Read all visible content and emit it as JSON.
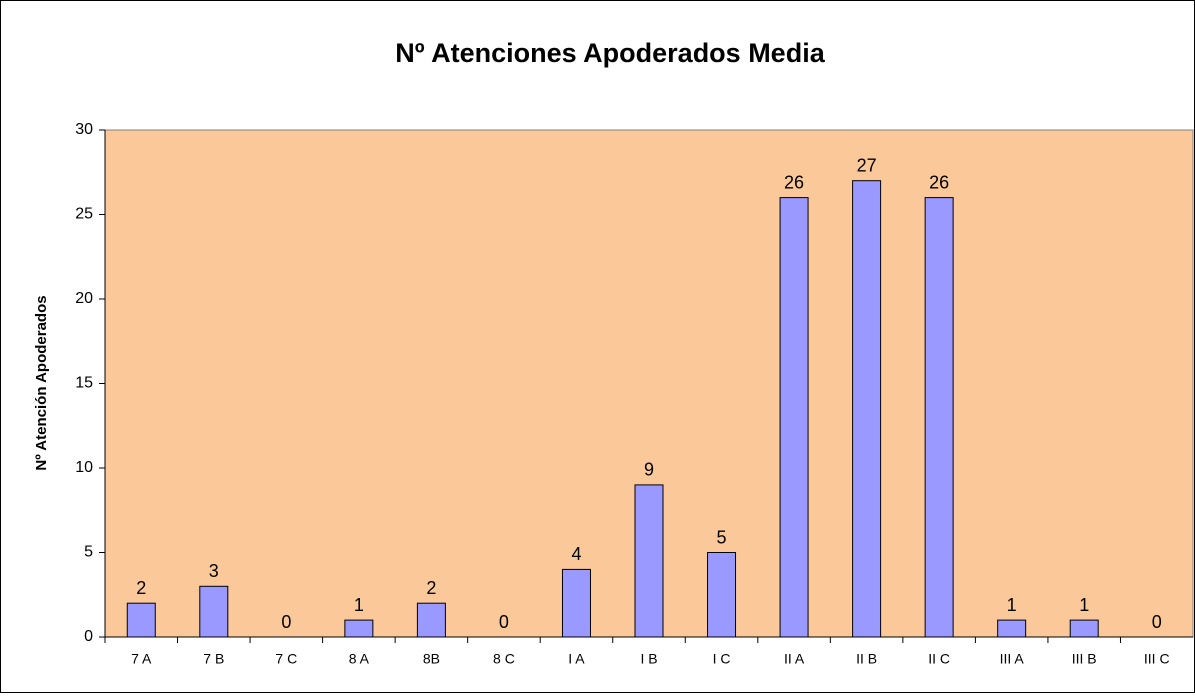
{
  "chart_data": {
    "type": "bar",
    "title": "Nº Atenciones Apoderados Media",
    "y_label": "Nº Atención Apoderados",
    "categories": [
      "7 A",
      "7 B",
      "7 C",
      "8 A",
      "8B",
      "8 C",
      "I A",
      "I B",
      "I C",
      "II A",
      "II B",
      "II C",
      "III A",
      "III B",
      "III C"
    ],
    "values": [
      2,
      3,
      0,
      1,
      2,
      0,
      4,
      9,
      5,
      26,
      27,
      26,
      1,
      1,
      0
    ],
    "color": "#9999ff",
    "background": "#fbc999",
    "ylim": [
      0,
      30
    ],
    "yticks": [
      0,
      5,
      10,
      15,
      20,
      25,
      30
    ],
    "grid": false,
    "data_labels": true
  }
}
